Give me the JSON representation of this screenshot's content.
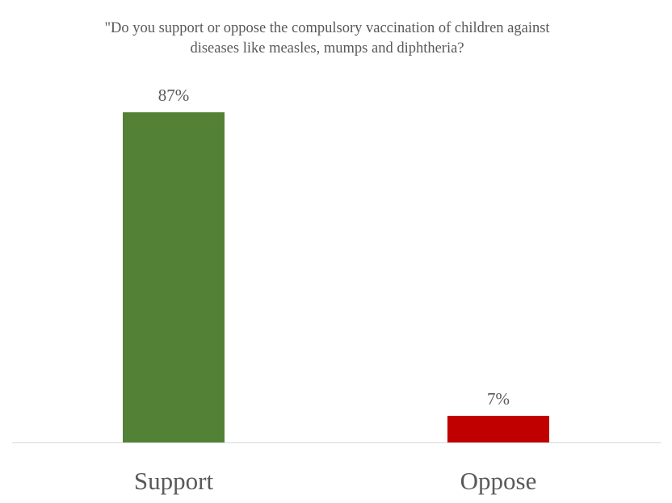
{
  "chart_data": {
    "type": "bar",
    "title_lines": [
      "\"Do you support or oppose the compulsory vaccination of children against",
      "diseases like measles, mumps and diphtheria?"
    ],
    "categories": [
      "Support",
      "Oppose"
    ],
    "values": [
      87,
      7
    ],
    "data_labels": [
      "87%",
      "7%"
    ],
    "colors": [
      "#538135",
      "#C00000"
    ],
    "xlabel": "",
    "ylabel": "",
    "ylim": [
      0,
      100
    ],
    "grid": false,
    "legend": "none"
  }
}
